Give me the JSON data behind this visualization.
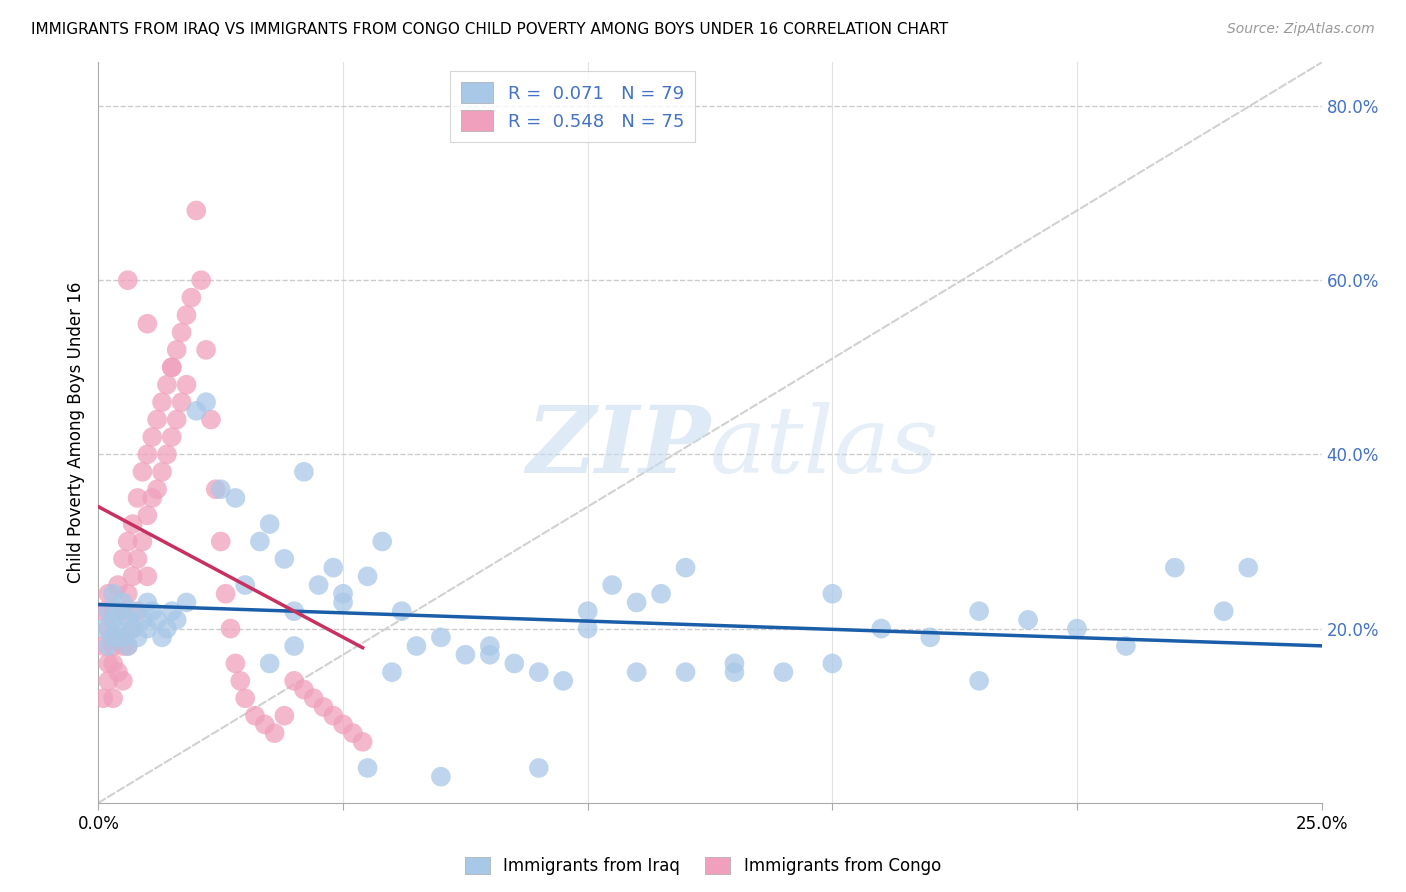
{
  "title": "IMMIGRANTS FROM IRAQ VS IMMIGRANTS FROM CONGO CHILD POVERTY AMONG BOYS UNDER 16 CORRELATION CHART",
  "source": "Source: ZipAtlas.com",
  "ylabel": "Child Poverty Among Boys Under 16",
  "legend_label_iraq": "Immigrants from Iraq",
  "legend_label_congo": "Immigrants from Congo",
  "iraq_R": 0.071,
  "iraq_N": 79,
  "congo_R": 0.548,
  "congo_N": 75,
  "color_iraq": "#a8c8e8",
  "color_iraq_line": "#1a5da8",
  "color_congo": "#f0a0bc",
  "color_congo_line": "#c83060",
  "color_diagonal": "#cccccc",
  "watermark_color": "#ddeeff",
  "xlim": [
    0.0,
    0.25
  ],
  "ylim": [
    0.0,
    0.85
  ],
  "ytick_right": [
    0.2,
    0.4,
    0.6,
    0.8
  ],
  "ytick_labels": [
    "20.0%",
    "40.0%",
    "60.0%",
    "80.0%"
  ],
  "xtick_major": [
    0.0,
    0.25
  ],
  "xtick_minor": [
    0.05,
    0.1,
    0.15,
    0.2
  ],
  "iraq_x": [
    0.001,
    0.002,
    0.002,
    0.003,
    0.003,
    0.003,
    0.004,
    0.004,
    0.005,
    0.005,
    0.006,
    0.006,
    0.007,
    0.007,
    0.008,
    0.009,
    0.01,
    0.01,
    0.011,
    0.012,
    0.013,
    0.014,
    0.015,
    0.016,
    0.018,
    0.02,
    0.022,
    0.025,
    0.028,
    0.03,
    0.033,
    0.035,
    0.038,
    0.04,
    0.042,
    0.045,
    0.048,
    0.05,
    0.055,
    0.058,
    0.062,
    0.065,
    0.07,
    0.075,
    0.08,
    0.085,
    0.09,
    0.095,
    0.1,
    0.105,
    0.11,
    0.115,
    0.12,
    0.13,
    0.14,
    0.15,
    0.16,
    0.17,
    0.18,
    0.19,
    0.2,
    0.21,
    0.22,
    0.23,
    0.035,
    0.04,
    0.05,
    0.06,
    0.08,
    0.1,
    0.12,
    0.15,
    0.18,
    0.055,
    0.07,
    0.09,
    0.11,
    0.13,
    0.235
  ],
  "iraq_y": [
    0.2,
    0.22,
    0.18,
    0.21,
    0.19,
    0.24,
    0.2,
    0.22,
    0.19,
    0.23,
    0.21,
    0.18,
    0.22,
    0.2,
    0.19,
    0.21,
    0.2,
    0.23,
    0.22,
    0.21,
    0.19,
    0.2,
    0.22,
    0.21,
    0.23,
    0.45,
    0.46,
    0.36,
    0.35,
    0.25,
    0.3,
    0.32,
    0.28,
    0.22,
    0.38,
    0.25,
    0.27,
    0.24,
    0.26,
    0.3,
    0.22,
    0.18,
    0.19,
    0.17,
    0.18,
    0.16,
    0.15,
    0.14,
    0.22,
    0.25,
    0.23,
    0.24,
    0.27,
    0.15,
    0.15,
    0.24,
    0.2,
    0.19,
    0.22,
    0.21,
    0.2,
    0.18,
    0.27,
    0.22,
    0.16,
    0.18,
    0.23,
    0.15,
    0.17,
    0.2,
    0.15,
    0.16,
    0.14,
    0.04,
    0.03,
    0.04,
    0.15,
    0.16,
    0.27
  ],
  "congo_x": [
    0.001,
    0.001,
    0.001,
    0.002,
    0.002,
    0.002,
    0.002,
    0.003,
    0.003,
    0.003,
    0.003,
    0.004,
    0.004,
    0.004,
    0.005,
    0.005,
    0.005,
    0.005,
    0.006,
    0.006,
    0.006,
    0.007,
    0.007,
    0.007,
    0.008,
    0.008,
    0.008,
    0.009,
    0.009,
    0.01,
    0.01,
    0.01,
    0.011,
    0.011,
    0.012,
    0.012,
    0.013,
    0.013,
    0.014,
    0.014,
    0.015,
    0.015,
    0.016,
    0.016,
    0.017,
    0.017,
    0.018,
    0.018,
    0.019,
    0.02,
    0.021,
    0.022,
    0.023,
    0.024,
    0.025,
    0.026,
    0.027,
    0.028,
    0.029,
    0.03,
    0.032,
    0.034,
    0.036,
    0.038,
    0.04,
    0.042,
    0.044,
    0.046,
    0.048,
    0.05,
    0.052,
    0.054,
    0.006,
    0.01,
    0.015
  ],
  "congo_y": [
    0.18,
    0.22,
    0.12,
    0.2,
    0.16,
    0.24,
    0.14,
    0.18,
    0.22,
    0.16,
    0.12,
    0.25,
    0.19,
    0.15,
    0.28,
    0.22,
    0.18,
    0.14,
    0.3,
    0.24,
    0.18,
    0.32,
    0.26,
    0.2,
    0.35,
    0.28,
    0.22,
    0.38,
    0.3,
    0.4,
    0.33,
    0.26,
    0.42,
    0.35,
    0.44,
    0.36,
    0.46,
    0.38,
    0.48,
    0.4,
    0.5,
    0.42,
    0.52,
    0.44,
    0.54,
    0.46,
    0.56,
    0.48,
    0.58,
    0.68,
    0.6,
    0.52,
    0.44,
    0.36,
    0.3,
    0.24,
    0.2,
    0.16,
    0.14,
    0.12,
    0.1,
    0.09,
    0.08,
    0.1,
    0.14,
    0.13,
    0.12,
    0.11,
    0.1,
    0.09,
    0.08,
    0.07,
    0.6,
    0.55,
    0.5
  ]
}
